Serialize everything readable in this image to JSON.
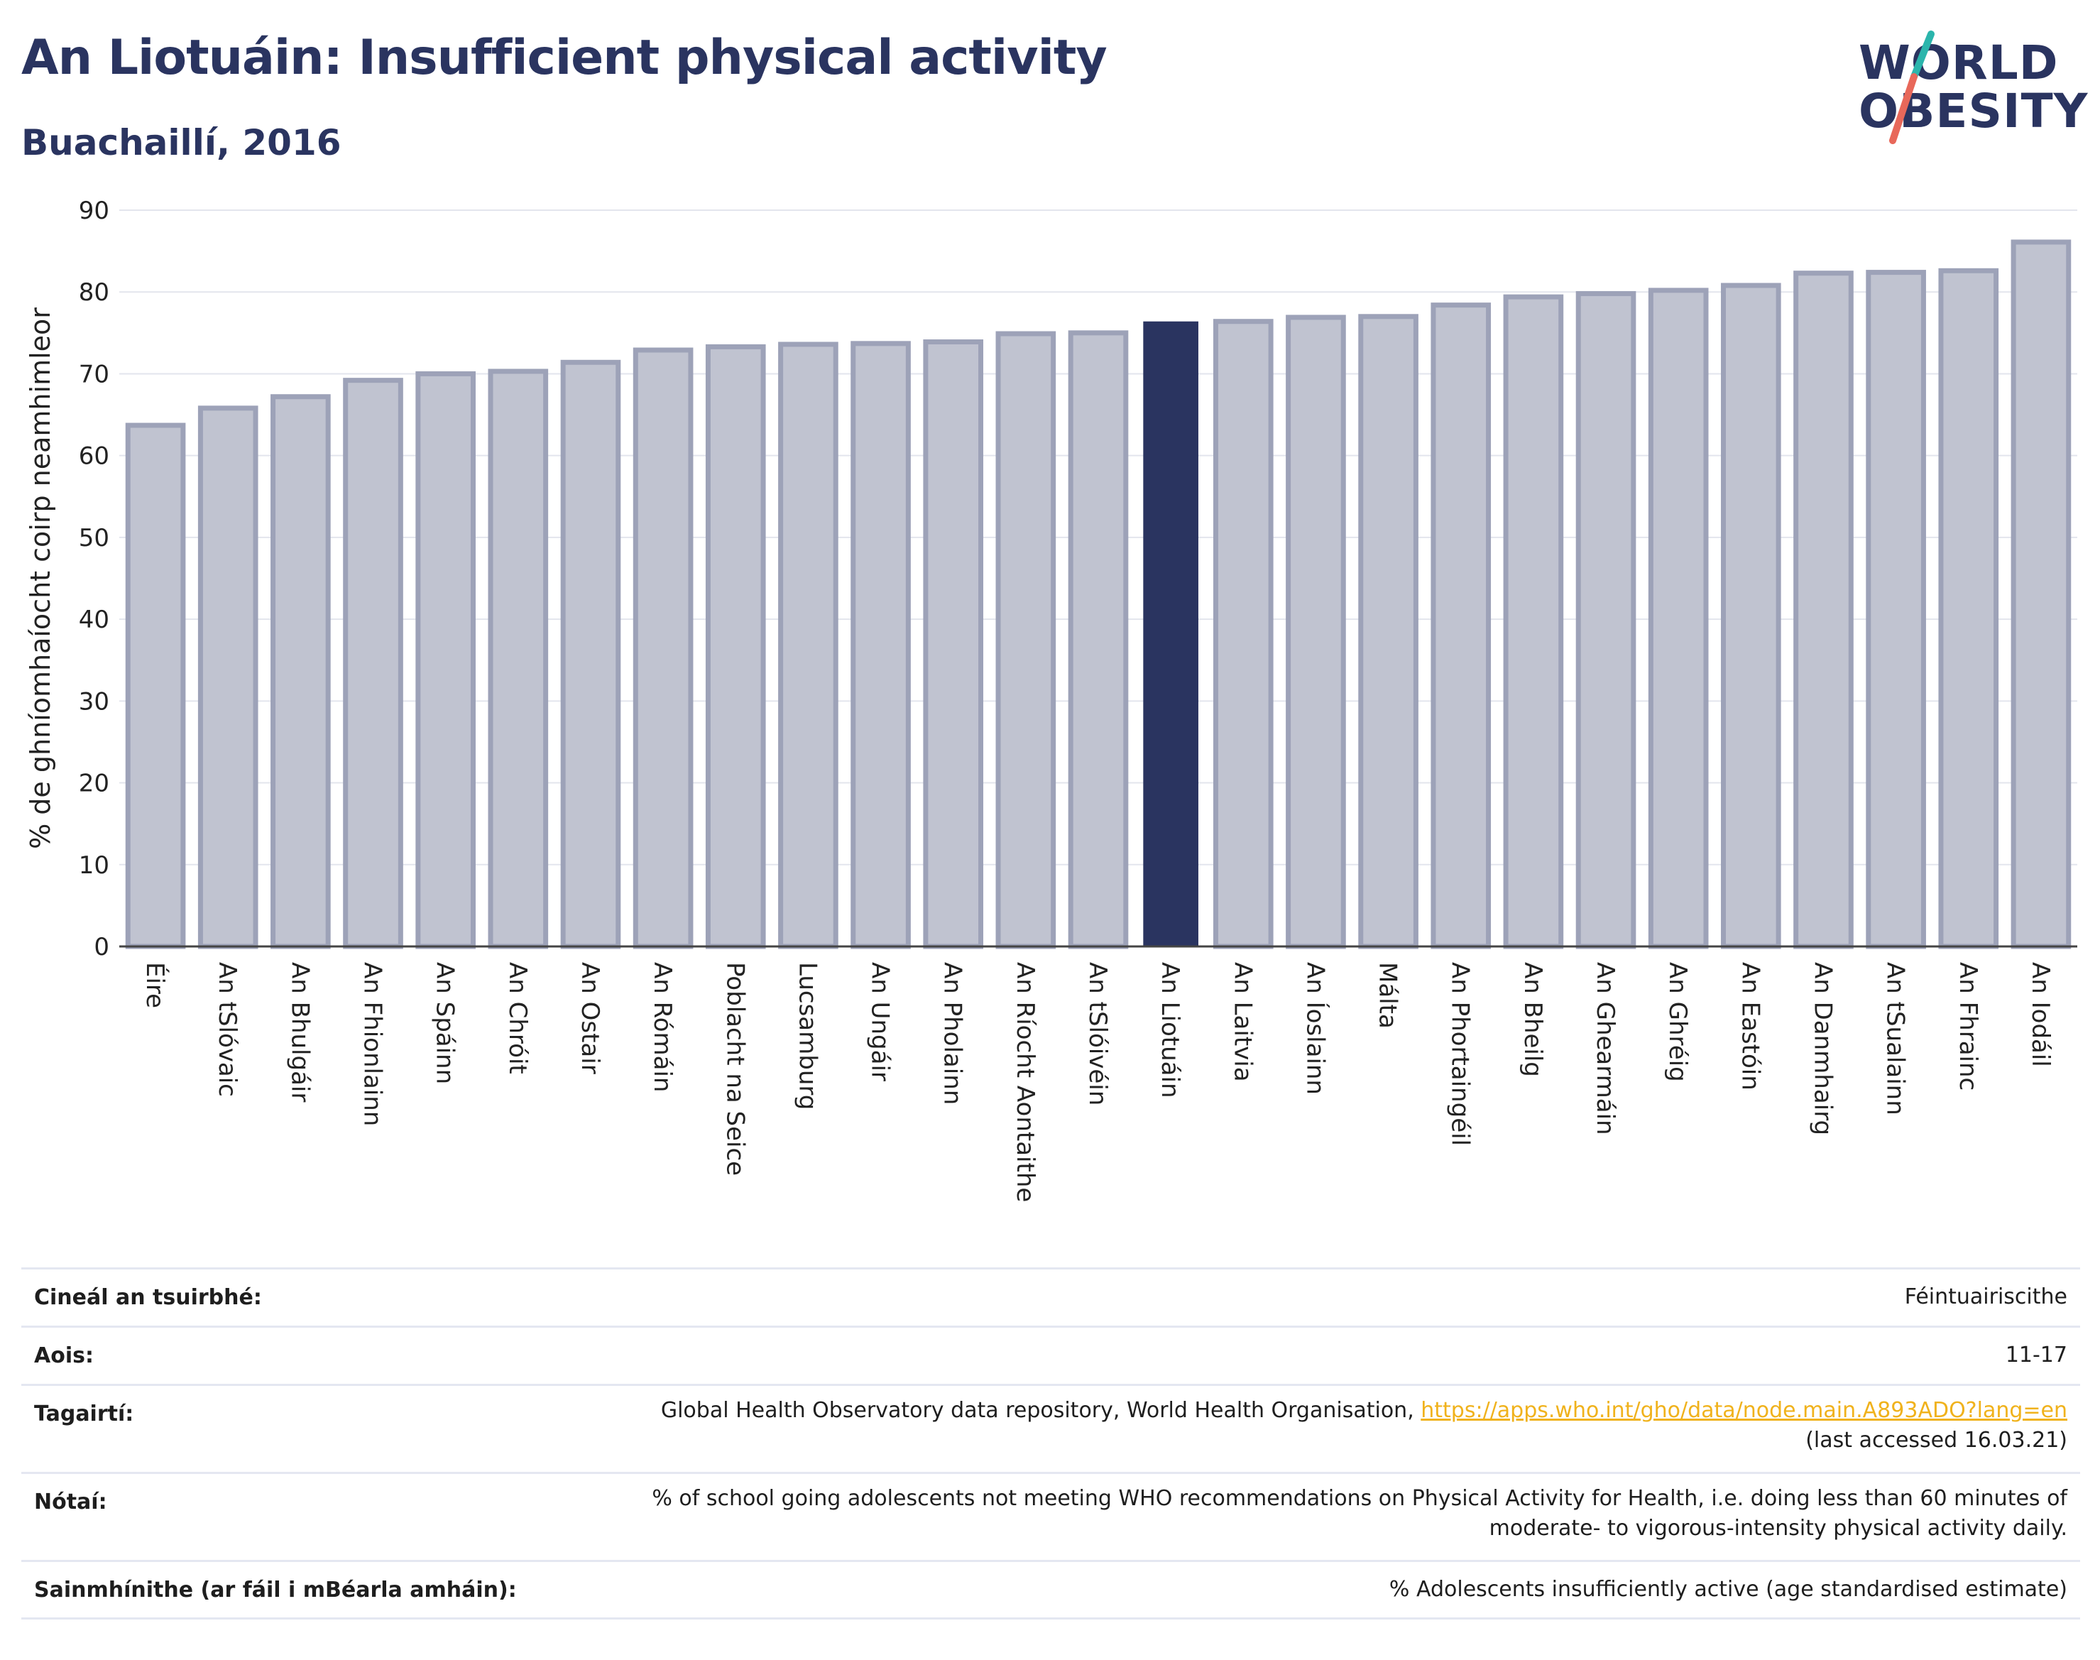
{
  "header": {
    "title": "An Liotuáin: Insufficient physical activity",
    "subtitle": "Buachaillí, 2016"
  },
  "logo": {
    "line1": "WORLD",
    "line2": "OBESITY",
    "colors": {
      "text": "#2a3460",
      "slash_top": "#2bb5ac",
      "slash_bottom": "#e8685a"
    }
  },
  "chart_data": {
    "type": "bar",
    "title": "",
    "xlabel": "",
    "ylabel": "% de ghníomhaíocht coirp neamhimleor",
    "ylim": [
      0,
      90
    ],
    "yticks": [
      0,
      10,
      20,
      30,
      40,
      50,
      60,
      70,
      80,
      90
    ],
    "grid": true,
    "highlight": "An Liotuáin",
    "colors": {
      "bar": "#c0c3d0",
      "bar_edge": "#9da2b8",
      "highlight": "#2a3460",
      "grid": "#e3e5ed",
      "axis": "#444444"
    },
    "categories": [
      "Éire",
      "An tSlóvaic",
      "An Bhulgáir",
      "An Fhionlainn",
      "An Spáinn",
      "An Chróit",
      "An Ostair",
      "An Rómáin",
      "Poblacht na Seice",
      "Lucsamburg",
      "An Ungáir",
      "An Pholainn",
      "An Ríocht Aontaithe",
      "An tSlóivéin",
      "An Liotuáin",
      "An Laitvia",
      "An Íoslainn",
      "Málta",
      "An Phortaingéil",
      "An Bheilg",
      "An Ghearmáin",
      "An Ghréig",
      "An Eastóin",
      "An Danmhairg",
      "An tSualainn",
      "An Fhrainc",
      "An Iodáil"
    ],
    "category_labels_display": [
      "Éire",
      "An tSlóvaic",
      "An Bhulgáir",
      "An Fhionlainn",
      "An Spáinn",
      "An Chróit",
      "An Ostair",
      "An Rómáin",
      "Poblacht na Seice",
      "Lucsamburg",
      "An Ungáir",
      "An Pholainn",
      "An Ríocht Aontaithe",
      "An tSlóivéin",
      "An Liotuáin",
      "An Laitvia",
      "An Íoslainn",
      "Málta",
      "An Phortaingéil",
      "An Bheilg",
      "An Ghearmáin",
      "An Ghréig",
      "An Eastóin",
      "An Danmhairg",
      "An tSualainn",
      "An Fhrainc",
      "An Iodáil"
    ],
    "values": [
      63.7,
      65.8,
      67.2,
      69.2,
      70.0,
      70.3,
      71.4,
      72.9,
      73.3,
      73.6,
      73.7,
      73.9,
      74.9,
      75.0,
      76.4,
      76.4,
      76.9,
      77.0,
      78.4,
      79.4,
      79.8,
      80.2,
      80.8,
      82.3,
      82.4,
      82.6,
      86.1
    ]
  },
  "info": {
    "rows": [
      {
        "label": "Cineál an tsuirbhé:",
        "value": "Féintuairiscithe"
      },
      {
        "label": "Aois:",
        "value": "11-17"
      },
      {
        "label": "Tagairtí:",
        "value_prefix": "Global Health Observatory data repository, World Health Organisation, ",
        "link": "https://apps.who.int/gho/data/node.main.A893ADO?lang=en",
        "value_suffix": "(last accessed 16.03.21)"
      },
      {
        "label": "Nótaí:",
        "value_line1": "% of school going adolescents not meeting WHO recommendations on Physical Activity for Health, i.e. doing less than 60 minutes of",
        "value_line2": "moderate- to vigorous-intensity physical activity daily."
      },
      {
        "label": "Sainmhínithe (ar fáil i mBéarla amháin):",
        "value": "% Adolescents insufficiently active (age standardised estimate)"
      }
    ]
  }
}
